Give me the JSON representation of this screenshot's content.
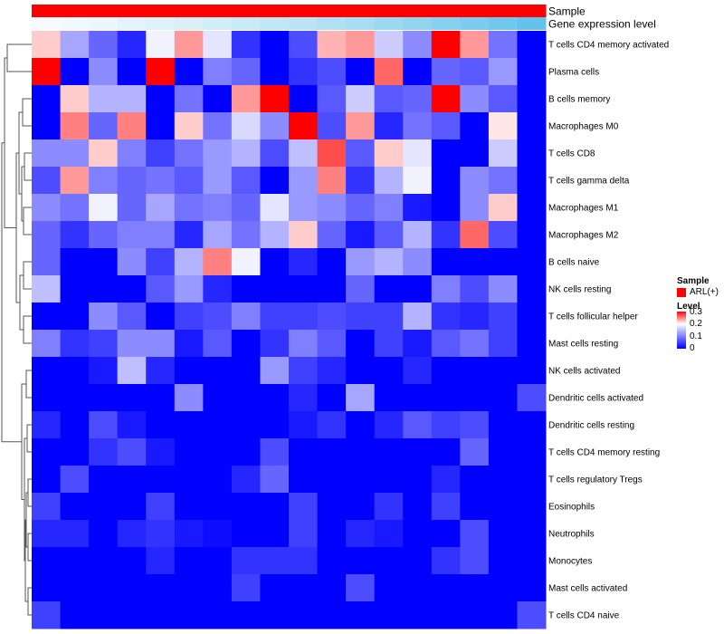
{
  "chart_data": {
    "type": "heatmap",
    "title": "",
    "annotation_labels": [
      "Sample",
      "Gene expression level"
    ],
    "annotation_colors": {
      "Sample": [
        "#ff0000",
        "#ff0000",
        "#ff0000",
        "#ff0000",
        "#ff0000",
        "#ff0000",
        "#ff0000",
        "#ff0000",
        "#ff0000",
        "#ff0000",
        "#ff0000",
        "#ff0000",
        "#ff0000",
        "#ff0000",
        "#ff0000",
        "#ff0000",
        "#ff0000",
        "#ff0000"
      ],
      "Gene expression level": [
        "#f7fbfd",
        "#f1f9fc",
        "#ebf7fb",
        "#e5f4fa",
        "#dff2f9",
        "#d8eff8",
        "#d1edf7",
        "#c9eaf6",
        "#c1e7f5",
        "#b8e4f4",
        "#afe0f3",
        "#a5ddf2",
        "#9bd9f1",
        "#91d5f0",
        "#86d1ef",
        "#7bccee",
        "#70c8ed",
        "#62c3ec"
      ]
    },
    "rows": [
      "T cells CD4 memory activated",
      "Plasma cells",
      "B cells memory",
      "Macrophages M0",
      "T cells CD8",
      "T cells gamma delta",
      "Macrophages M1",
      "Macrophages M2",
      "B cells naive",
      "NK cells resting",
      "T cells follicular helper",
      "Mast cells resting",
      "NK cells activated",
      "Dendritic cells activated",
      "Dendritic cells resting",
      "T cells CD4 memory resting",
      "T cells regulatory  Tregs",
      "Eosinophils",
      "Neutrophils",
      "Monocytes",
      "Mast cells activated",
      "T cells CD4 naive"
    ],
    "values": [
      [
        0.22,
        0.13,
        0.08,
        0.03,
        0.19,
        0.24,
        0.18,
        0.04,
        0.0,
        0.06,
        0.23,
        0.24,
        0.16,
        0.11,
        0.3,
        0.24,
        0.09,
        0.0
      ],
      [
        0.3,
        0.0,
        0.11,
        0.0,
        0.3,
        0.0,
        0.1,
        0.08,
        0.0,
        0.04,
        0.06,
        0.0,
        0.26,
        0.0,
        0.08,
        0.07,
        0.12,
        0.0
      ],
      [
        0.0,
        0.22,
        0.14,
        0.14,
        0.0,
        0.09,
        0.0,
        0.24,
        0.3,
        0.0,
        0.07,
        0.16,
        0.07,
        0.08,
        0.3,
        0.11,
        0.07,
        0.0
      ],
      [
        0.0,
        0.25,
        0.08,
        0.25,
        0.0,
        0.22,
        0.09,
        0.17,
        0.11,
        0.3,
        0.06,
        0.24,
        0.03,
        0.09,
        0.07,
        0.0,
        0.21,
        0.0
      ],
      [
        0.11,
        0.11,
        0.22,
        0.1,
        0.05,
        0.09,
        0.12,
        0.14,
        0.06,
        0.15,
        0.27,
        0.07,
        0.22,
        0.18,
        0.0,
        0.0,
        0.16,
        0.0
      ],
      [
        0.06,
        0.24,
        0.1,
        0.08,
        0.09,
        0.07,
        0.12,
        0.07,
        0.0,
        0.12,
        0.25,
        0.04,
        0.14,
        0.19,
        0.0,
        0.11,
        0.09,
        0.0
      ],
      [
        0.11,
        0.09,
        0.19,
        0.08,
        0.13,
        0.09,
        0.1,
        0.08,
        0.18,
        0.12,
        0.11,
        0.08,
        0.1,
        0.02,
        0.0,
        0.11,
        0.22,
        0.0
      ],
      [
        0.08,
        0.04,
        0.08,
        0.1,
        0.1,
        0.03,
        0.13,
        0.09,
        0.14,
        0.22,
        0.08,
        0.02,
        0.07,
        0.14,
        0.04,
        0.26,
        0.06,
        0.0
      ],
      [
        0.08,
        0.0,
        0.0,
        0.11,
        0.05,
        0.14,
        0.25,
        0.19,
        0.0,
        0.03,
        0.0,
        0.12,
        0.14,
        0.11,
        0.0,
        0.0,
        0.0,
        0.0
      ],
      [
        0.15,
        0.0,
        0.0,
        0.0,
        0.07,
        0.12,
        0.03,
        0.0,
        0.0,
        0.0,
        0.0,
        0.08,
        0.0,
        0.0,
        0.1,
        0.06,
        0.11,
        0.0
      ],
      [
        0.0,
        0.0,
        0.11,
        0.07,
        0.0,
        0.05,
        0.06,
        0.1,
        0.05,
        0.05,
        0.06,
        0.05,
        0.05,
        0.14,
        0.04,
        0.03,
        0.05,
        0.0
      ],
      [
        0.1,
        0.04,
        0.05,
        0.11,
        0.11,
        0.02,
        0.07,
        0.0,
        0.04,
        0.1,
        0.07,
        0.0,
        0.05,
        0.02,
        0.07,
        0.09,
        0.05,
        0.0
      ],
      [
        0.0,
        0.0,
        0.02,
        0.15,
        0.03,
        0.0,
        0.0,
        0.0,
        0.12,
        0.05,
        0.03,
        0.0,
        0.0,
        0.03,
        0.0,
        0.0,
        0.0,
        0.0
      ],
      [
        0.0,
        0.0,
        0.0,
        0.0,
        0.0,
        0.11,
        0.0,
        0.0,
        0.0,
        0.03,
        0.0,
        0.13,
        0.0,
        0.0,
        0.0,
        0.0,
        0.0,
        0.06
      ],
      [
        0.03,
        0.0,
        0.06,
        0.02,
        0.0,
        0.0,
        0.0,
        0.0,
        0.0,
        0.02,
        0.04,
        0.0,
        0.03,
        0.07,
        0.05,
        0.06,
        0.0,
        0.0
      ],
      [
        0.0,
        0.0,
        0.04,
        0.06,
        0.02,
        0.0,
        0.0,
        0.0,
        0.06,
        0.0,
        0.0,
        0.0,
        0.0,
        0.0,
        0.0,
        0.08,
        0.0,
        0.0
      ],
      [
        0.0,
        0.06,
        0.0,
        0.0,
        0.0,
        0.0,
        0.0,
        0.03,
        0.08,
        0.0,
        0.0,
        0.0,
        0.0,
        0.0,
        0.03,
        0.0,
        0.0,
        0.0
      ],
      [
        0.05,
        0.0,
        0.0,
        0.0,
        0.05,
        0.0,
        0.0,
        0.0,
        0.0,
        0.05,
        0.0,
        0.0,
        0.04,
        0.0,
        0.05,
        0.0,
        0.0,
        0.0
      ],
      [
        0.03,
        0.03,
        0.0,
        0.03,
        0.04,
        0.02,
        0.01,
        0.0,
        0.0,
        0.05,
        0.0,
        0.03,
        0.02,
        0.0,
        0.0,
        0.06,
        0.0,
        0.0
      ],
      [
        0.0,
        0.0,
        0.0,
        0.0,
        0.03,
        0.0,
        0.0,
        0.04,
        0.04,
        0.04,
        0.0,
        0.0,
        0.0,
        0.0,
        0.04,
        0.06,
        0.0,
        0.0
      ],
      [
        0.0,
        0.0,
        0.0,
        0.0,
        0.0,
        0.0,
        0.0,
        0.05,
        0.0,
        0.0,
        0.0,
        0.06,
        0.0,
        0.0,
        0.0,
        0.0,
        0.0,
        0.0
      ],
      [
        0.05,
        0.0,
        0.0,
        0.0,
        0.0,
        0.0,
        0.0,
        0.0,
        0.0,
        0.0,
        0.0,
        0.0,
        0.0,
        0.0,
        0.0,
        0.0,
        0.0,
        0.06
      ]
    ],
    "color_scale": {
      "low": "#0000ff",
      "mid": "#ffffff",
      "high": "#ff0000",
      "min": 0,
      "mid_value": 0.2,
      "max": 0.3
    },
    "legend": {
      "sample_title": "Sample",
      "sample_entry": "ARL(+)",
      "sample_color": "#ff0000",
      "level_title": "Level",
      "level_ticks": [
        "0.3",
        "0.2",
        "0.1",
        "0"
      ],
      "level_tick_values": [
        0.3,
        0.2,
        0.1,
        0
      ]
    }
  }
}
